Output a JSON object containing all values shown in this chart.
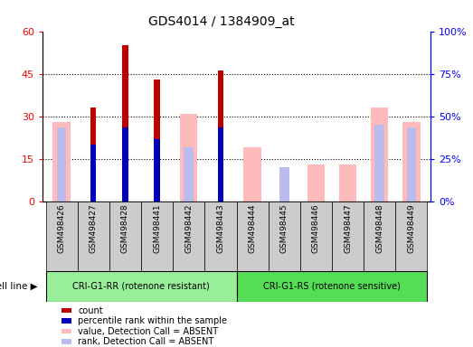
{
  "title": "GDS4014 / 1384909_at",
  "samples": [
    "GSM498426",
    "GSM498427",
    "GSM498428",
    "GSM498441",
    "GSM498442",
    "GSM498443",
    "GSM498444",
    "GSM498445",
    "GSM498446",
    "GSM498447",
    "GSM498448",
    "GSM498449"
  ],
  "group1_label": "CRI-G1-RR (rotenone resistant)",
  "group2_label": "CRI-G1-RS (rotenone sensitive)",
  "group1_count": 6,
  "group2_count": 6,
  "count_values": [
    0,
    33,
    55,
    43,
    0,
    46,
    0,
    0,
    0,
    0,
    0,
    0
  ],
  "rank_values": [
    0,
    20,
    26,
    22,
    0,
    26,
    0,
    0,
    0,
    0,
    0,
    0
  ],
  "value_absent": [
    28,
    0,
    0,
    0,
    31,
    0,
    19,
    0,
    13,
    13,
    33,
    28
  ],
  "rank_absent": [
    26,
    0,
    0,
    0,
    19,
    0,
    0,
    12,
    0,
    0,
    27,
    26
  ],
  "ylim_left": [
    0,
    60
  ],
  "ylim_right": [
    0,
    100
  ],
  "yticks_left": [
    0,
    15,
    30,
    45,
    60
  ],
  "yticks_right": [
    0,
    25,
    50,
    75,
    100
  ],
  "color_count": "#bb0000",
  "color_rank": "#0000bb",
  "color_value_absent": "#ffbbbb",
  "color_rank_absent": "#bbbbee",
  "group1_color": "#99ee99",
  "group2_color": "#55dd55",
  "sample_bg_color": "#cccccc",
  "cell_line_text_bg": "#dddddd",
  "legend_items": [
    [
      "#bb0000",
      "count"
    ],
    [
      "#0000bb",
      "percentile rank within the sample"
    ],
    [
      "#ffbbbb",
      "value, Detection Call = ABSENT"
    ],
    [
      "#bbbbee",
      "rank, Detection Call = ABSENT"
    ]
  ]
}
